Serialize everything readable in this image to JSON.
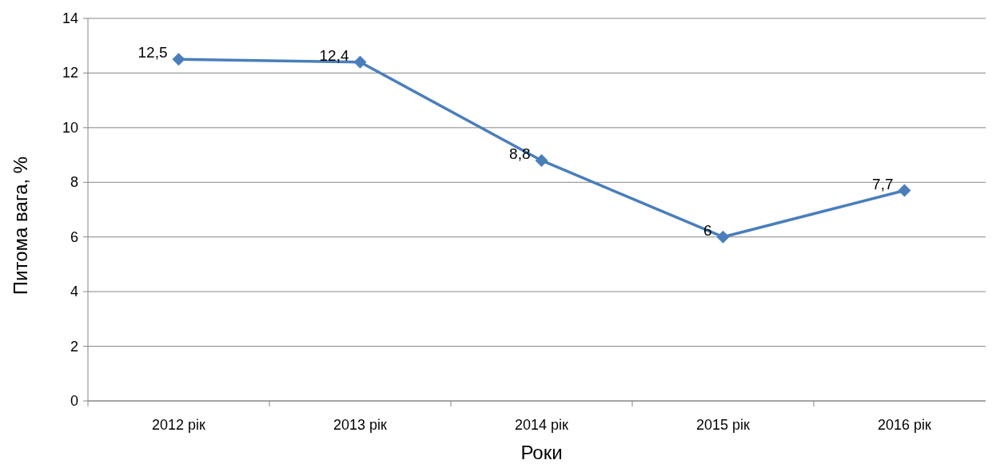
{
  "chart_data": {
    "type": "line",
    "xlabel": "Роки",
    "ylabel": "Питома вага, %",
    "categories": [
      "2012 рік",
      "2013 рік",
      "2014 рік",
      "2015 рік",
      "2016 рік"
    ],
    "series": [
      {
        "color": "#4a7ebb",
        "values": [
          12.5,
          12.4,
          8.8,
          6,
          7.7
        ],
        "value_labels": [
          "12,5",
          "12,4",
          "8,8",
          "6",
          "7,7"
        ]
      }
    ],
    "ylim": [
      0,
      14
    ],
    "yticks": [
      0,
      2,
      4,
      6,
      8,
      10,
      12,
      14
    ],
    "grid": "y",
    "marker": "diamond",
    "line_style": "solid"
  }
}
